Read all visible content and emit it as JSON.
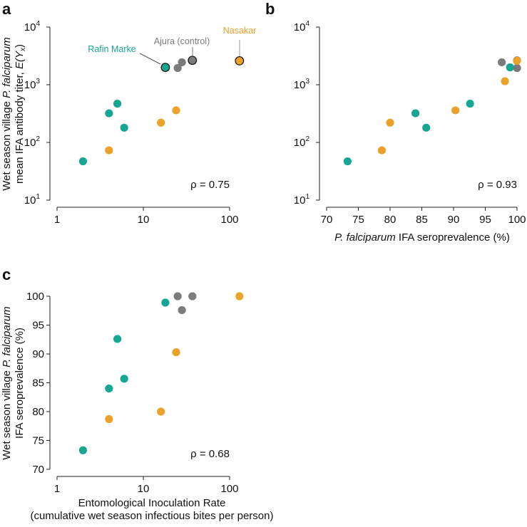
{
  "colors": {
    "teal": "#17a594",
    "orange": "#eaa22a",
    "gray": "#7b7b7b"
  },
  "chart_data": [
    {
      "panel": "a",
      "type": "scatter",
      "xscale": "log",
      "yscale": "log",
      "xlim": [
        1,
        150
      ],
      "ylim": [
        10,
        10000
      ],
      "xticks": [
        "1",
        "10",
        "100"
      ],
      "xtick_values": [
        1,
        10,
        100
      ],
      "yticks": [
        {
          "base": "10",
          "exp": "4",
          "v": 10000
        },
        {
          "base": "10",
          "exp": "3",
          "v": 1000
        },
        {
          "base": "10",
          "exp": "2",
          "v": 100
        },
        {
          "base": "10",
          "exp": "1",
          "v": 10
        }
      ],
      "ylabel_line1_pre": "Wet season village ",
      "ylabel_line1_ital": "P. falciparum",
      "ylabel_line2": "mean IFA antibody titer, ",
      "ylabel_line2_math": "E(Y",
      "ylabel_line2_sub": "x",
      "ylabel_line2_end": ")",
      "annotation": "ρ = 0.75",
      "labels": [
        {
          "text": "Rafin Marke",
          "group": "teal"
        },
        {
          "text": "Ajura (control)",
          "group": "gray"
        },
        {
          "text": "Nasakar",
          "group": "orange"
        }
      ],
      "series": [
        {
          "name": "teal",
          "points": [
            [
              2,
              47
            ],
            [
              4,
              320
            ],
            [
              5,
              470
            ],
            [
              6,
              180
            ],
            [
              18,
              2000,
              "highlight"
            ]
          ]
        },
        {
          "name": "orange",
          "points": [
            [
              4,
              73
            ],
            [
              16,
              220
            ],
            [
              24,
              360
            ],
            [
              130,
              2600,
              "highlight"
            ]
          ]
        },
        {
          "name": "gray",
          "points": [
            [
              25,
              1950
            ],
            [
              28,
              2450
            ],
            [
              37,
              2650,
              "highlight"
            ]
          ]
        }
      ]
    },
    {
      "panel": "b",
      "type": "scatter",
      "xscale": "linear",
      "yscale": "log",
      "xlim": [
        70,
        100
      ],
      "ylim": [
        10,
        10000
      ],
      "xticks": [
        "70",
        "75",
        "80",
        "85",
        "90",
        "95",
        "100"
      ],
      "xtick_values": [
        70,
        75,
        80,
        85,
        90,
        95,
        100
      ],
      "yticks": [
        {
          "base": "10",
          "exp": "4",
          "v": 10000
        },
        {
          "base": "10",
          "exp": "3",
          "v": 1000
        },
        {
          "base": "10",
          "exp": "2",
          "v": 100
        },
        {
          "base": "10",
          "exp": "1",
          "v": 10
        }
      ],
      "xlabel_ital": "P. falciparum",
      "xlabel_rest": " IFA seroprevalence (%)",
      "annotation": "ρ = 0.93",
      "series": [
        {
          "name": "gray",
          "points": [
            [
              97.6,
              2450
            ],
            [
              100,
              1950
            ],
            [
              100,
              2650
            ]
          ]
        },
        {
          "name": "teal",
          "points": [
            [
              73.3,
              47
            ],
            [
              84,
              320
            ],
            [
              85.7,
              180
            ],
            [
              92.6,
              470
            ],
            [
              98.9,
              2000
            ]
          ]
        },
        {
          "name": "orange",
          "points": [
            [
              78.7,
              73
            ],
            [
              80,
              220
            ],
            [
              90.3,
              360
            ],
            [
              98.1,
              1150
            ],
            [
              100,
              2600
            ]
          ]
        }
      ]
    },
    {
      "panel": "c",
      "type": "scatter",
      "xscale": "log",
      "yscale": "linear",
      "xlim": [
        1,
        150
      ],
      "ylim": [
        70,
        100
      ],
      "xticks": [
        "1",
        "10",
        "100"
      ],
      "xtick_values": [
        1,
        10,
        100
      ],
      "yticks": [
        {
          "base": "100",
          "v": 100
        },
        {
          "base": "95",
          "v": 95
        },
        {
          "base": "90",
          "v": 90
        },
        {
          "base": "85",
          "v": 85
        },
        {
          "base": "80",
          "v": 80
        },
        {
          "base": "75",
          "v": 75
        },
        {
          "base": "70",
          "v": 70
        }
      ],
      "ylabel_line1_pre": "Wet season village ",
      "ylabel_line1_ital": "P. falciparum",
      "ylabel_line2": "IFA seroprevalence (%)",
      "xlabel_line1": "Entomological Inoculation Rate",
      "xlabel_line2": "(cumulative wet season infectious bites per person)",
      "annotation": "ρ = 0.68",
      "series": [
        {
          "name": "teal",
          "points": [
            [
              2,
              73.3
            ],
            [
              4,
              84
            ],
            [
              5,
              92.6
            ],
            [
              6,
              85.7
            ],
            [
              18,
              98.9
            ]
          ]
        },
        {
          "name": "orange",
          "points": [
            [
              4,
              78.7
            ],
            [
              16,
              80
            ],
            [
              24,
              90.3
            ],
            [
              130,
              100
            ]
          ]
        },
        {
          "name": "gray",
          "points": [
            [
              25,
              100
            ],
            [
              28,
              97.6
            ],
            [
              37,
              100
            ]
          ]
        }
      ]
    }
  ]
}
